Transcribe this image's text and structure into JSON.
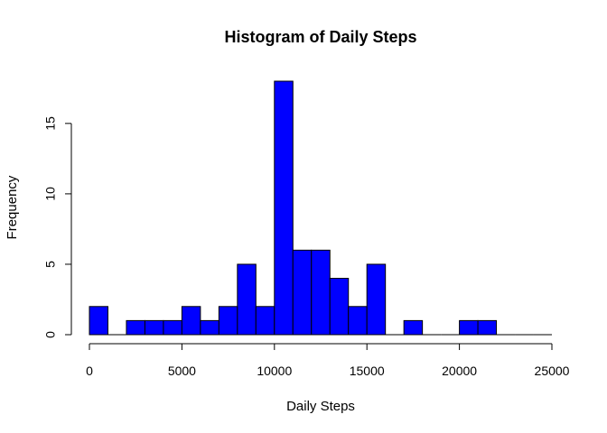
{
  "chart_data": {
    "type": "bar",
    "title": "Histogram of Daily Steps",
    "xlabel": "Daily Steps",
    "ylabel": "Frequency",
    "bar_color": "#0000ff",
    "bar_edge_color": "#000000",
    "bin_width": 1000,
    "bins_start": [
      0,
      1000,
      2000,
      3000,
      4000,
      5000,
      6000,
      7000,
      8000,
      9000,
      10000,
      11000,
      12000,
      13000,
      14000,
      15000,
      16000,
      17000,
      18000,
      19000,
      20000,
      21000,
      22000,
      23000,
      24000
    ],
    "values": [
      2,
      0,
      1,
      1,
      1,
      2,
      1,
      2,
      5,
      2,
      18,
      6,
      6,
      4,
      2,
      5,
      0,
      1,
      0,
      0,
      1,
      1,
      0,
      0,
      0
    ],
    "xlim": [
      0,
      25000
    ],
    "ylim": [
      0,
      18
    ],
    "x_ticks": [
      0,
      5000,
      10000,
      15000,
      20000,
      25000
    ],
    "x_tick_labels": [
      "0",
      "5000",
      "10000",
      "15000",
      "20000",
      "25000"
    ],
    "y_ticks": [
      0,
      5,
      10,
      15
    ],
    "y_tick_labels": [
      "0",
      "5",
      "10",
      "15"
    ],
    "grid": false
  }
}
